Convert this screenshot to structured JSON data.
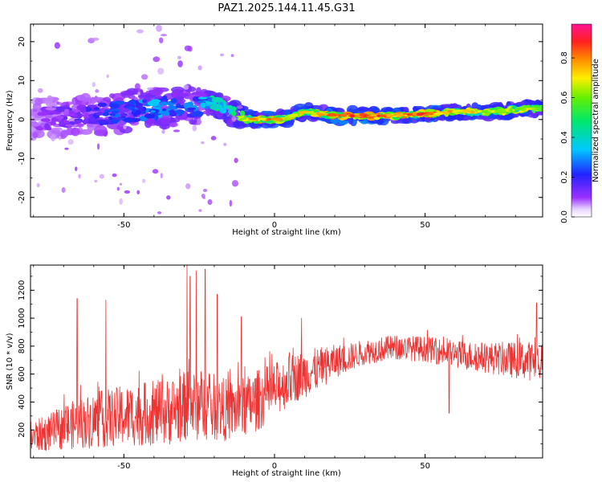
{
  "title": "PAZ1.2025.144.11.45.G31",
  "colors": {
    "snr_line": "#ee3333",
    "axis": "#000000",
    "background": "#ffffff"
  },
  "chart_data": [
    {
      "type": "heatmap",
      "xlabel": "Height of straight line (km)",
      "ylabel": "Frequency (Hz)",
      "xlim": [
        -81,
        89
      ],
      "ylim": [
        -25,
        24.5
      ],
      "x_ticks": [
        -50,
        0,
        50
      ],
      "y_ticks": [
        20,
        10,
        0,
        -10,
        -20
      ],
      "colorbar": {
        "label": "Normalized spectral amplitude",
        "range": [
          0.0,
          0.97
        ],
        "ticks": [
          0.0,
          0.2,
          0.4,
          0.6,
          0.8
        ],
        "colormap": "rainbow (white/violet → purple → blue → cyan → green → yellow → orange → red → magenta)"
      },
      "ridge": {
        "x": [
          -80,
          -70,
          -60,
          -50,
          -40,
          -30,
          -25,
          -20,
          -15,
          -10,
          -5,
          0,
          5,
          10,
          20,
          30,
          40,
          50,
          60,
          70,
          80,
          89
        ],
        "frequency": [
          0,
          0.5,
          1,
          2,
          3,
          3,
          4,
          4.5,
          2,
          0,
          0,
          0,
          0.5,
          2,
          1,
          1,
          1,
          1.5,
          2,
          2,
          2.5,
          3
        ],
        "amplitude": [
          0.1,
          0.15,
          0.2,
          0.3,
          0.35,
          0.3,
          0.3,
          0.5,
          0.45,
          0.7,
          0.8,
          0.8,
          0.75,
          0.7,
          0.85,
          0.9,
          0.8,
          0.85,
          0.75,
          0.7,
          0.7,
          0.65
        ]
      }
    },
    {
      "type": "line",
      "xlabel": "Height of straight line (km)",
      "ylabel": "SNR (10 * v/v)",
      "xlim": [
        -81,
        89
      ],
      "ylim": [
        0,
        1380
      ],
      "x_ticks": [
        -50,
        0,
        50
      ],
      "y_ticks": [
        200,
        400,
        600,
        800,
        1000,
        1200
      ],
      "envelope": {
        "x": [
          -81,
          -75,
          -70,
          -60,
          -50,
          -40,
          -35,
          -30,
          -25,
          -20,
          -15,
          -10,
          -5,
          0,
          5,
          10,
          15,
          20,
          25,
          30,
          40,
          50,
          60,
          70,
          80,
          89
        ],
        "mean": [
          150,
          180,
          220,
          270,
          300,
          320,
          330,
          370,
          380,
          360,
          340,
          360,
          420,
          480,
          560,
          600,
          640,
          690,
          720,
          760,
          790,
          780,
          740,
          720,
          700,
          690
        ],
        "spread": [
          110,
          130,
          160,
          200,
          220,
          230,
          240,
          250,
          260,
          240,
          220,
          220,
          220,
          200,
          180,
          170,
          150,
          120,
          100,
          90,
          90,
          90,
          100,
          110,
          130,
          150
        ]
      },
      "spikes": [
        {
          "x": -65.5,
          "y": 1140
        },
        {
          "x": -56,
          "y": 1130
        },
        {
          "x": -29,
          "y": 1380
        },
        {
          "x": -28,
          "y": 1300
        },
        {
          "x": -26,
          "y": 1340
        },
        {
          "x": -23,
          "y": 1350
        },
        {
          "x": -19,
          "y": 1170
        },
        {
          "x": -11,
          "y": 1010
        },
        {
          "x": 9,
          "y": 1000
        },
        {
          "x": 58,
          "y": 320
        },
        {
          "x": 87,
          "y": 1110
        }
      ]
    }
  ]
}
